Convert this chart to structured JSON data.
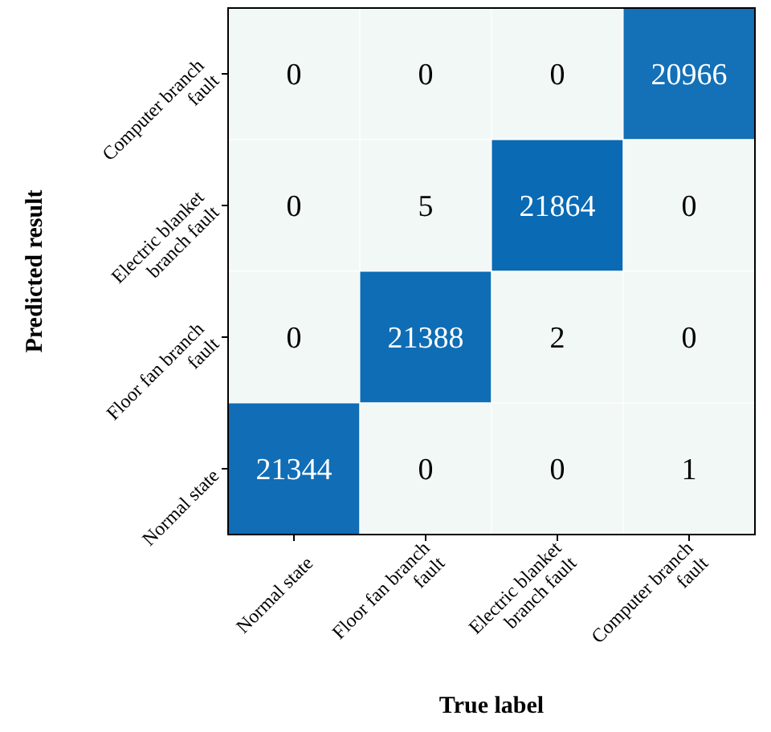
{
  "chart_data": {
    "type": "heatmap",
    "xlabel": "True label",
    "ylabel": "Predicted result",
    "categories": [
      "Normal state",
      "Floor fan branch fault",
      "Electric blanket branch fault",
      "Computer branch fault"
    ],
    "y_categories": [
      "Computer branch fault",
      "Electric blanket branch fault",
      "Floor fan branch fault",
      "Normal state"
    ],
    "data_labels": true,
    "cells": [
      [
        0,
        0,
        0,
        20966
      ],
      [
        0,
        5,
        21864,
        0
      ],
      [
        0,
        21388,
        2,
        0
      ],
      [
        21344,
        0,
        0,
        1
      ]
    ]
  }
}
